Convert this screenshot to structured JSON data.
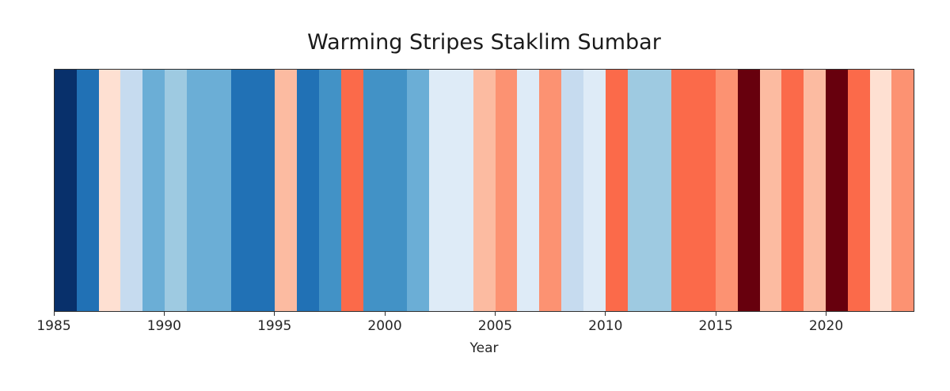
{
  "chart_data": {
    "type": "heatmap",
    "title": "Warming Stripes Staklim Sumbar",
    "xlabel": "Year",
    "x_range": [
      1985,
      2024
    ],
    "x_ticks": [
      1985,
      1990,
      1995,
      2000,
      2005,
      2010,
      2015,
      2020
    ],
    "grid": false,
    "legend": "none",
    "palette_note": "ColorBrewer RdBu-style warming stripes; blue = cooler, red = warmer",
    "frame_color": "#2e2e2e",
    "text_color": "#262626",
    "stripes": [
      {
        "year": 1985,
        "color": "#08306b"
      },
      {
        "year": 1986,
        "color": "#2171b5"
      },
      {
        "year": 1987,
        "color": "#fee0d2"
      },
      {
        "year": 1988,
        "color": "#c6dbef"
      },
      {
        "year": 1989,
        "color": "#6baed6"
      },
      {
        "year": 1990,
        "color": "#9ecae1"
      },
      {
        "year": 1991,
        "color": "#6baed6"
      },
      {
        "year": 1992,
        "color": "#6baed6"
      },
      {
        "year": 1993,
        "color": "#2171b5"
      },
      {
        "year": 1994,
        "color": "#2171b5"
      },
      {
        "year": 1995,
        "color": "#fcbba1"
      },
      {
        "year": 1996,
        "color": "#2171b5"
      },
      {
        "year": 1997,
        "color": "#4292c6"
      },
      {
        "year": 1998,
        "color": "#fb6a4a"
      },
      {
        "year": 1999,
        "color": "#4292c6"
      },
      {
        "year": 2000,
        "color": "#4292c6"
      },
      {
        "year": 2001,
        "color": "#6baed6"
      },
      {
        "year": 2002,
        "color": "#deebf7"
      },
      {
        "year": 2003,
        "color": "#deebf7"
      },
      {
        "year": 2004,
        "color": "#fcbba1"
      },
      {
        "year": 2005,
        "color": "#fc9272"
      },
      {
        "year": 2006,
        "color": "#deebf7"
      },
      {
        "year": 2007,
        "color": "#fc9272"
      },
      {
        "year": 2008,
        "color": "#c6dbef"
      },
      {
        "year": 2009,
        "color": "#deebf7"
      },
      {
        "year": 2010,
        "color": "#fb6a4a"
      },
      {
        "year": 2011,
        "color": "#9ecae1"
      },
      {
        "year": 2012,
        "color": "#9ecae1"
      },
      {
        "year": 2013,
        "color": "#fb6a4a"
      },
      {
        "year": 2014,
        "color": "#fb6a4a"
      },
      {
        "year": 2015,
        "color": "#fc9272"
      },
      {
        "year": 2016,
        "color": "#67000d"
      },
      {
        "year": 2017,
        "color": "#fcbba1"
      },
      {
        "year": 2018,
        "color": "#fb6a4a"
      },
      {
        "year": 2019,
        "color": "#fcbba1"
      },
      {
        "year": 2020,
        "color": "#67000d"
      },
      {
        "year": 2021,
        "color": "#fb6a4a"
      },
      {
        "year": 2022,
        "color": "#fee0d2"
      },
      {
        "year": 2023,
        "color": "#fc9272"
      }
    ]
  }
}
